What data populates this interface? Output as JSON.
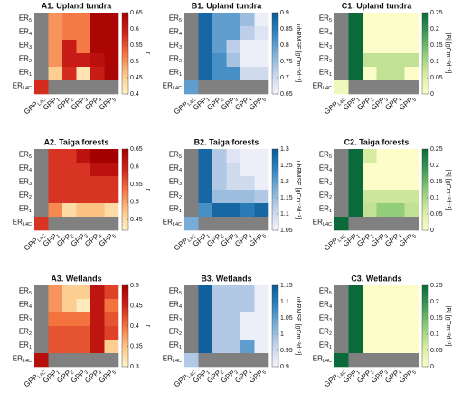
{
  "chart_data": [
    {
      "type": "heatmap",
      "title": "A1. Upland tundra",
      "colorbar_label": "r",
      "xlabels": [
        {
          "text": "GPP",
          "sub": "L4C"
        },
        {
          "text": "GPP",
          "sub": "1"
        },
        {
          "text": "GPP",
          "sub": "2"
        },
        {
          "text": "GPP",
          "sub": "3"
        },
        {
          "text": "GPP",
          "sub": "4"
        },
        {
          "text": "GPP",
          "sub": "5"
        }
      ],
      "ylabels": [
        {
          "text": "ER",
          "sub": "5"
        },
        {
          "text": "ER",
          "sub": "4"
        },
        {
          "text": "ER",
          "sub": "3"
        },
        {
          "text": "ER",
          "sub": "2"
        },
        {
          "text": "ER",
          "sub": "1"
        },
        {
          "text": "ER",
          "sub": "L4C"
        }
      ],
      "values": [
        [
          null,
          0.5,
          0.52,
          0.52,
          0.64,
          0.64
        ],
        [
          null,
          0.5,
          0.52,
          0.52,
          0.64,
          0.64
        ],
        [
          null,
          0.5,
          0.6,
          0.52,
          0.64,
          0.64
        ],
        [
          null,
          0.5,
          0.6,
          0.6,
          0.62,
          0.64
        ],
        [
          null,
          0.45,
          0.58,
          0.42,
          0.6,
          0.64
        ],
        [
          0.58,
          null,
          null,
          null,
          null,
          null
        ]
      ],
      "zlim": [
        0.4,
        0.65
      ],
      "zticks": [
        0.4,
        0.45,
        0.5,
        0.55,
        0.6,
        0.65
      ],
      "colormap": [
        "#fef3c8",
        "#fdc585",
        "#f3733f",
        "#d0231c",
        "#a50000"
      ],
      "missing_color": "#808080"
    },
    {
      "type": "heatmap",
      "title": "B1. Upland tundra",
      "colorbar_label": "ubRMSE [gCm⁻²d⁻¹]",
      "xlabels": [
        {
          "text": "GPP",
          "sub": "L4C"
        },
        {
          "text": "GPP",
          "sub": "1"
        },
        {
          "text": "GPP",
          "sub": "2"
        },
        {
          "text": "GPP",
          "sub": "3"
        },
        {
          "text": "GPP",
          "sub": "4"
        },
        {
          "text": "GPP",
          "sub": "5"
        }
      ],
      "ylabels": [
        {
          "text": "ER",
          "sub": "5"
        },
        {
          "text": "ER",
          "sub": "4"
        },
        {
          "text": "ER",
          "sub": "3"
        },
        {
          "text": "ER",
          "sub": "2"
        },
        {
          "text": "ER",
          "sub": "1"
        },
        {
          "text": "ER",
          "sub": "L4C"
        }
      ],
      "values": [
        [
          null,
          0.88,
          0.8,
          0.8,
          0.75,
          0.66
        ],
        [
          null,
          0.88,
          0.8,
          0.8,
          0.72,
          0.68
        ],
        [
          null,
          0.88,
          0.8,
          0.72,
          0.66,
          0.66
        ],
        [
          null,
          0.88,
          0.82,
          0.74,
          0.66,
          0.66
        ],
        [
          null,
          0.88,
          0.82,
          0.82,
          0.7,
          0.7
        ],
        [
          0.8,
          null,
          null,
          null,
          null,
          null
        ]
      ],
      "zlim": [
        0.65,
        0.9
      ],
      "zticks": [
        0.65,
        0.7,
        0.75,
        0.8,
        0.85,
        0.9
      ],
      "colormap": [
        "#f4f4fb",
        "#c6d3ea",
        "#7eb0d8",
        "#3183bf",
        "#0b5a99"
      ],
      "missing_color": "#808080"
    },
    {
      "type": "heatmap",
      "title": "C1. Upland tundra",
      "colorbar_label": "|B| [gCm⁻²d⁻¹]",
      "xlabels": [
        {
          "text": "GPP",
          "sub": "L4C"
        },
        {
          "text": "GPP",
          "sub": "1"
        },
        {
          "text": "GPP",
          "sub": "2"
        },
        {
          "text": "GPP",
          "sub": "3"
        },
        {
          "text": "GPP",
          "sub": "4"
        },
        {
          "text": "GPP",
          "sub": "5"
        }
      ],
      "ylabels": [
        {
          "text": "ER",
          "sub": "5"
        },
        {
          "text": "ER",
          "sub": "4"
        },
        {
          "text": "ER",
          "sub": "3"
        },
        {
          "text": "ER",
          "sub": "2"
        },
        {
          "text": "ER",
          "sub": "1"
        },
        {
          "text": "ER",
          "sub": "L4C"
        }
      ],
      "values": [
        [
          null,
          0.25,
          0,
          0,
          0,
          0
        ],
        [
          null,
          0.25,
          0,
          0,
          0,
          0
        ],
        [
          null,
          0.25,
          0,
          0,
          0,
          0
        ],
        [
          null,
          0.25,
          0.08,
          0.08,
          0.08,
          0.08
        ],
        [
          null,
          0.25,
          0,
          0.08,
          0.08,
          0
        ],
        [
          0.02,
          null,
          null,
          null,
          null,
          null
        ]
      ],
      "zlim": [
        0,
        0.25
      ],
      "zticks": [
        0,
        0.05,
        0.1,
        0.15,
        0.2,
        0.25
      ],
      "colormap": [
        "#fdfdc9",
        "#d5eba0",
        "#8ccb77",
        "#3d9b55",
        "#0a6a3a"
      ],
      "missing_color": "#808080"
    },
    {
      "type": "heatmap",
      "title": "A2. Taiga forests",
      "colorbar_label": "r",
      "xlabels": [
        {
          "text": "GPP",
          "sub": "L4C"
        },
        {
          "text": "GPP",
          "sub": "1"
        },
        {
          "text": "GPP",
          "sub": "2"
        },
        {
          "text": "GPP",
          "sub": "3"
        },
        {
          "text": "GPP",
          "sub": "4"
        },
        {
          "text": "GPP",
          "sub": "5"
        }
      ],
      "ylabels": [
        {
          "text": "ER",
          "sub": "5"
        },
        {
          "text": "ER",
          "sub": "4"
        },
        {
          "text": "ER",
          "sub": "3"
        },
        {
          "text": "ER",
          "sub": "2"
        },
        {
          "text": "ER",
          "sub": "1"
        },
        {
          "text": "ER",
          "sub": "L4C"
        }
      ],
      "values": [
        [
          null,
          0.58,
          0.58,
          0.62,
          0.65,
          0.65
        ],
        [
          null,
          0.58,
          0.58,
          0.58,
          0.62,
          0.62
        ],
        [
          null,
          0.58,
          0.58,
          0.58,
          0.58,
          0.58
        ],
        [
          null,
          0.58,
          0.58,
          0.58,
          0.58,
          0.58
        ],
        [
          null,
          0.52,
          0.45,
          0.48,
          0.48,
          0.45
        ],
        [
          0.58,
          null,
          null,
          null,
          null,
          null
        ]
      ],
      "zlim": [
        0.42,
        0.65
      ],
      "zticks": [
        0.45,
        0.5,
        0.55,
        0.6,
        0.65
      ],
      "colormap": [
        "#fef3c8",
        "#fdc585",
        "#f3733f",
        "#d0231c",
        "#a50000"
      ],
      "missing_color": "#808080"
    },
    {
      "type": "heatmap",
      "title": "B2. Taiga forests",
      "colorbar_label": "ubRMSE [gCm⁻²d⁻¹]",
      "xlabels": [
        {
          "text": "GPP",
          "sub": "L4C"
        },
        {
          "text": "GPP",
          "sub": "1"
        },
        {
          "text": "GPP",
          "sub": "2"
        },
        {
          "text": "GPP",
          "sub": "3"
        },
        {
          "text": "GPP",
          "sub": "4"
        },
        {
          "text": "GPP",
          "sub": "5"
        }
      ],
      "ylabels": [
        {
          "text": "ER",
          "sub": "5"
        },
        {
          "text": "ER",
          "sub": "4"
        },
        {
          "text": "ER",
          "sub": "3"
        },
        {
          "text": "ER",
          "sub": "2"
        },
        {
          "text": "ER",
          "sub": "1"
        },
        {
          "text": "ER",
          "sub": "L4C"
        }
      ],
      "values": [
        [
          null,
          1.28,
          1.13,
          1.08,
          1.06,
          1.06
        ],
        [
          null,
          1.28,
          1.13,
          1.1,
          1.06,
          1.06
        ],
        [
          null,
          1.28,
          1.13,
          1.1,
          1.1,
          1.06
        ],
        [
          null,
          1.28,
          1.15,
          1.15,
          1.15,
          1.13
        ],
        [
          null,
          1.22,
          1.28,
          1.28,
          1.25,
          1.28
        ],
        [
          1.18,
          null,
          null,
          null,
          null,
          null
        ]
      ],
      "zlim": [
        1.05,
        1.3
      ],
      "zticks": [
        1.05,
        1.1,
        1.15,
        1.2,
        1.25,
        1.3
      ],
      "colormap": [
        "#f4f4fb",
        "#c6d3ea",
        "#7eb0d8",
        "#3183bf",
        "#0b5a99"
      ],
      "missing_color": "#808080"
    },
    {
      "type": "heatmap",
      "title": "C2. Taiga forests",
      "colorbar_label": "|B| [gCm⁻²d⁻¹]",
      "xlabels": [
        {
          "text": "GPP",
          "sub": "L4C"
        },
        {
          "text": "GPP",
          "sub": "1"
        },
        {
          "text": "GPP",
          "sub": "2"
        },
        {
          "text": "GPP",
          "sub": "3"
        },
        {
          "text": "GPP",
          "sub": "4"
        },
        {
          "text": "GPP",
          "sub": "5"
        }
      ],
      "ylabels": [
        {
          "text": "ER",
          "sub": "5"
        },
        {
          "text": "ER",
          "sub": "4"
        },
        {
          "text": "ER",
          "sub": "3"
        },
        {
          "text": "ER",
          "sub": "2"
        },
        {
          "text": "ER",
          "sub": "1"
        },
        {
          "text": "ER",
          "sub": "L4C"
        }
      ],
      "values": [
        [
          null,
          0.25,
          0.06,
          0,
          0,
          0
        ],
        [
          null,
          0.25,
          0,
          0,
          0,
          0
        ],
        [
          null,
          0.25,
          0,
          0,
          0,
          0
        ],
        [
          null,
          0.25,
          0.07,
          0.07,
          0.07,
          0.07
        ],
        [
          null,
          0.25,
          0.08,
          0.12,
          0.12,
          0.08
        ],
        [
          0.25,
          null,
          null,
          null,
          null,
          null
        ]
      ],
      "zlim": [
        0,
        0.25
      ],
      "zticks": [
        0,
        0.05,
        0.1,
        0.15,
        0.2,
        0.25
      ],
      "colormap": [
        "#fdfdc9",
        "#d5eba0",
        "#8ccb77",
        "#3d9b55",
        "#0a6a3a"
      ],
      "missing_color": "#808080"
    },
    {
      "type": "heatmap",
      "title": "A3. Wetlands",
      "colorbar_label": "r",
      "xlabels": [
        {
          "text": "GPP",
          "sub": "L4C"
        },
        {
          "text": "GPP",
          "sub": "1"
        },
        {
          "text": "GPP",
          "sub": "2"
        },
        {
          "text": "GPP",
          "sub": "3"
        },
        {
          "text": "GPP",
          "sub": "4"
        },
        {
          "text": "GPP",
          "sub": "5"
        }
      ],
      "ylabels": [
        {
          "text": "ER",
          "sub": "5"
        },
        {
          "text": "ER",
          "sub": "4"
        },
        {
          "text": "ER",
          "sub": "3"
        },
        {
          "text": "ER",
          "sub": "2"
        },
        {
          "text": "ER",
          "sub": "1"
        },
        {
          "text": "ER",
          "sub": "L4C"
        }
      ],
      "values": [
        [
          null,
          0.38,
          0.34,
          0.34,
          0.47,
          0.43
        ],
        [
          null,
          0.38,
          0.34,
          0.31,
          0.47,
          0.4
        ],
        [
          null,
          0.4,
          0.4,
          0.4,
          0.47,
          0.42
        ],
        [
          null,
          0.42,
          0.42,
          0.42,
          0.47,
          0.43
        ],
        [
          null,
          0.42,
          0.42,
          0.42,
          0.47,
          0.34
        ],
        [
          0.48,
          null,
          null,
          null,
          null,
          null
        ]
      ],
      "zlim": [
        0.3,
        0.5
      ],
      "zticks": [
        0.3,
        0.35,
        0.4,
        0.45,
        0.5
      ],
      "colormap": [
        "#fef3c8",
        "#fdc585",
        "#f3733f",
        "#d0231c",
        "#a50000"
      ],
      "missing_color": "#808080"
    },
    {
      "type": "heatmap",
      "title": "B3. Wetlands",
      "colorbar_label": "ubRMSE [gCm⁻²d⁻¹]",
      "xlabels": [
        {
          "text": "GPP",
          "sub": "L4C"
        },
        {
          "text": "GPP",
          "sub": "1"
        },
        {
          "text": "GPP",
          "sub": "2"
        },
        {
          "text": "GPP",
          "sub": "3"
        },
        {
          "text": "GPP",
          "sub": "4"
        },
        {
          "text": "GPP",
          "sub": "5"
        }
      ],
      "ylabels": [
        {
          "text": "ER",
          "sub": "5"
        },
        {
          "text": "ER",
          "sub": "4"
        },
        {
          "text": "ER",
          "sub": "3"
        },
        {
          "text": "ER",
          "sub": "2"
        },
        {
          "text": "ER",
          "sub": "1"
        },
        {
          "text": "ER",
          "sub": "L4C"
        }
      ],
      "values": [
        [
          null,
          1.14,
          0.98,
          0.98,
          0.98,
          0.91
        ],
        [
          null,
          1.14,
          0.98,
          0.98,
          0.98,
          0.91
        ],
        [
          null,
          1.14,
          0.98,
          0.98,
          0.91,
          0.91
        ],
        [
          null,
          1.14,
          0.98,
          0.98,
          0.91,
          0.91
        ],
        [
          null,
          1.14,
          0.98,
          0.98,
          1.05,
          0.91
        ],
        [
          0.98,
          null,
          null,
          null,
          null,
          null
        ]
      ],
      "zlim": [
        0.9,
        1.15
      ],
      "zticks": [
        0.9,
        0.95,
        1,
        1.05,
        1.1,
        1.15
      ],
      "colormap": [
        "#f4f4fb",
        "#c6d3ea",
        "#7eb0d8",
        "#3183bf",
        "#0b5a99"
      ],
      "missing_color": "#808080"
    },
    {
      "type": "heatmap",
      "title": "C3. Wetlands",
      "colorbar_label": "|B| [gCm⁻²d⁻¹]",
      "xlabels": [
        {
          "text": "GPP",
          "sub": "L4C"
        },
        {
          "text": "GPP",
          "sub": "1"
        },
        {
          "text": "GPP",
          "sub": "2"
        },
        {
          "text": "GPP",
          "sub": "3"
        },
        {
          "text": "GPP",
          "sub": "4"
        },
        {
          "text": "GPP",
          "sub": "5"
        }
      ],
      "ylabels": [
        {
          "text": "ER",
          "sub": "5"
        },
        {
          "text": "ER",
          "sub": "4"
        },
        {
          "text": "ER",
          "sub": "3"
        },
        {
          "text": "ER",
          "sub": "2"
        },
        {
          "text": "ER",
          "sub": "1"
        },
        {
          "text": "ER",
          "sub": "L4C"
        }
      ],
      "values": [
        [
          null,
          0.25,
          0,
          0,
          0,
          0
        ],
        [
          null,
          0.25,
          0,
          0,
          0,
          0
        ],
        [
          null,
          0.25,
          0,
          0,
          0,
          0
        ],
        [
          null,
          0.25,
          0,
          0,
          0,
          0
        ],
        [
          null,
          0.25,
          0,
          0,
          0,
          0
        ],
        [
          0.25,
          null,
          null,
          null,
          null,
          null
        ]
      ],
      "zlim": [
        0,
        0.25
      ],
      "zticks": [
        0,
        0.05,
        0.1,
        0.15,
        0.2,
        0.25
      ],
      "colormap": [
        "#fdfdc9",
        "#d5eba0",
        "#8ccb77",
        "#3d9b55",
        "#0a6a3a"
      ],
      "missing_color": "#808080"
    }
  ]
}
